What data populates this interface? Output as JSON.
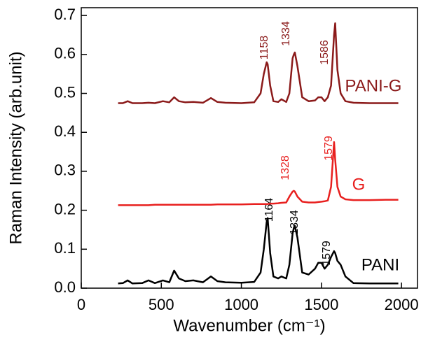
{
  "chart_data": {
    "type": "line",
    "x_label": "Wavenumber (cm⁻¹)",
    "y_label": "Raman Intensity (arb.unit)",
    "x": [
      230,
      260,
      290,
      320,
      380,
      420,
      460,
      510,
      550,
      580,
      610,
      650,
      700,
      760,
      810,
      850,
      900,
      1000,
      1080,
      1120,
      1140,
      1158,
      1164,
      1180,
      1200,
      1230,
      1250,
      1280,
      1300,
      1320,
      1328,
      1334,
      1350,
      1380,
      1420,
      1460,
      1480,
      1500,
      1520,
      1540,
      1560,
      1579,
      1586,
      1600,
      1620,
      1650,
      1700,
      1800,
      1900,
      1980
    ],
    "series": [
      {
        "name": "PANI",
        "color": "#000000",
        "peak_labels": [
          "1164",
          "1334",
          "1579"
        ],
        "values": [
          0.012,
          0.013,
          0.02,
          0.012,
          0.013,
          0.02,
          0.013,
          0.02,
          0.015,
          0.045,
          0.025,
          0.018,
          0.02,
          0.015,
          0.03,
          0.018,
          0.015,
          0.014,
          0.016,
          0.04,
          0.1,
          0.17,
          0.18,
          0.09,
          0.03,
          0.025,
          0.03,
          0.025,
          0.06,
          0.14,
          0.155,
          0.16,
          0.13,
          0.04,
          0.035,
          0.05,
          0.065,
          0.065,
          0.05,
          0.06,
          0.08,
          0.095,
          0.09,
          0.07,
          0.06,
          0.03,
          0.013,
          0.012,
          0.012,
          0.012
        ]
      },
      {
        "name": "G",
        "color": "#e8201f",
        "peak_labels": [
          "1328",
          "1579"
        ],
        "values": [
          0.213,
          0.213,
          0.213,
          0.213,
          0.213,
          0.213,
          0.214,
          0.214,
          0.214,
          0.214,
          0.214,
          0.214,
          0.214,
          0.214,
          0.214,
          0.215,
          0.215,
          0.215,
          0.216,
          0.216,
          0.216,
          0.216,
          0.216,
          0.217,
          0.217,
          0.218,
          0.219,
          0.22,
          0.235,
          0.248,
          0.25,
          0.248,
          0.235,
          0.222,
          0.22,
          0.22,
          0.221,
          0.222,
          0.223,
          0.225,
          0.26,
          0.375,
          0.33,
          0.26,
          0.235,
          0.228,
          0.226,
          0.226,
          0.227,
          0.227
        ]
      },
      {
        "name": "PANI-G",
        "color": "#8b1a1a",
        "peak_labels": [
          "1158",
          "1334",
          "1586"
        ],
        "values": [
          0.475,
          0.475,
          0.48,
          0.475,
          0.475,
          0.476,
          0.475,
          0.48,
          0.477,
          0.49,
          0.48,
          0.477,
          0.478,
          0.476,
          0.488,
          0.478,
          0.476,
          0.475,
          0.477,
          0.5,
          0.55,
          0.58,
          0.575,
          0.52,
          0.48,
          0.478,
          0.485,
          0.478,
          0.5,
          0.59,
          0.6,
          0.605,
          0.57,
          0.49,
          0.48,
          0.482,
          0.49,
          0.49,
          0.48,
          0.49,
          0.52,
          0.65,
          0.68,
          0.56,
          0.5,
          0.48,
          0.476,
          0.475,
          0.475,
          0.475
        ]
      }
    ],
    "xlim": [
      0,
      2100
    ],
    "ylim": [
      0,
      0.72
    ],
    "xticks": [
      0,
      500,
      1000,
      1500,
      2000
    ],
    "yticks": [
      {
        "value": 0,
        "label": "0.0"
      },
      0.1,
      0.2,
      0.3,
      0.4,
      0.5,
      0.6,
      0.7
    ]
  }
}
